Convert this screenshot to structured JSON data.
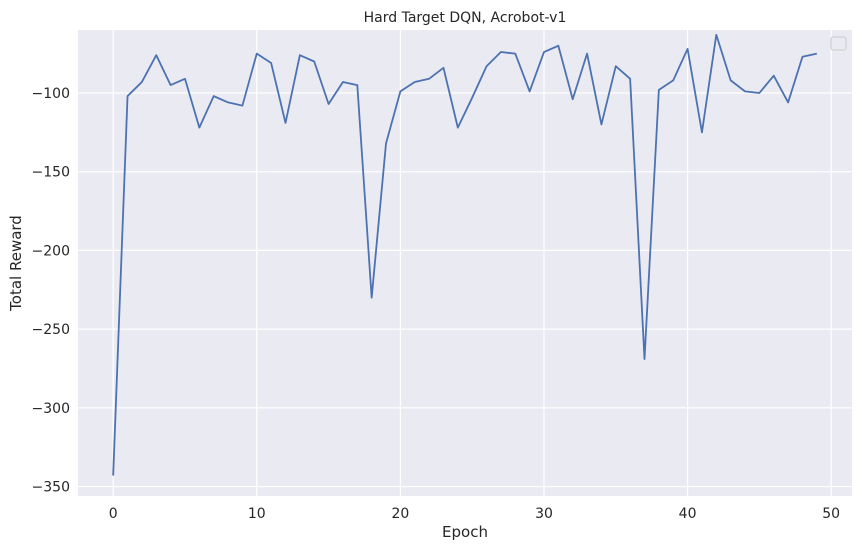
{
  "chart_data": {
    "type": "line",
    "title": "Hard Target DQN, Acrobot-v1",
    "xlabel": "Epoch",
    "ylabel": "Total Reward",
    "xlim": [
      -2.45,
      51.45
    ],
    "ylim": [
      -356,
      -60
    ],
    "xticks": [
      0,
      10,
      20,
      30,
      40,
      50
    ],
    "yticks": [
      -350,
      -300,
      -250,
      -200,
      -150,
      -100
    ],
    "grid": true,
    "legend": "top-right (empty)",
    "background_color": "#eaeaf2",
    "grid_color": "#ffffff",
    "line_color": "#4c72b0",
    "series": [
      {
        "x": [
          0,
          1,
          2,
          3,
          4,
          5,
          6,
          7,
          8,
          9,
          10,
          11,
          12,
          13,
          14,
          15,
          16,
          17,
          18,
          19,
          20,
          21,
          22,
          23,
          24,
          25,
          26,
          27,
          28,
          29,
          30,
          31,
          32,
          33,
          34,
          35,
          36,
          37,
          38,
          39,
          40,
          41,
          42,
          43,
          44,
          45,
          46,
          47,
          48,
          49
        ],
        "values": [
          -343,
          -102,
          -93,
          -76,
          -95,
          -91,
          -122,
          -102,
          -106,
          -108,
          -75,
          -81,
          -119,
          -76,
          -80,
          -107,
          -93,
          -95,
          -230,
          -132,
          -99,
          -93,
          -91,
          -84,
          -122,
          -103,
          -83,
          -74,
          -75,
          -99,
          -74,
          -70,
          -104,
          -75,
          -120,
          -83,
          -91,
          -269,
          -98,
          -92,
          -72,
          -125,
          -63,
          -92,
          -99,
          -100,
          -89,
          -106,
          -77,
          -75
        ]
      }
    ]
  }
}
